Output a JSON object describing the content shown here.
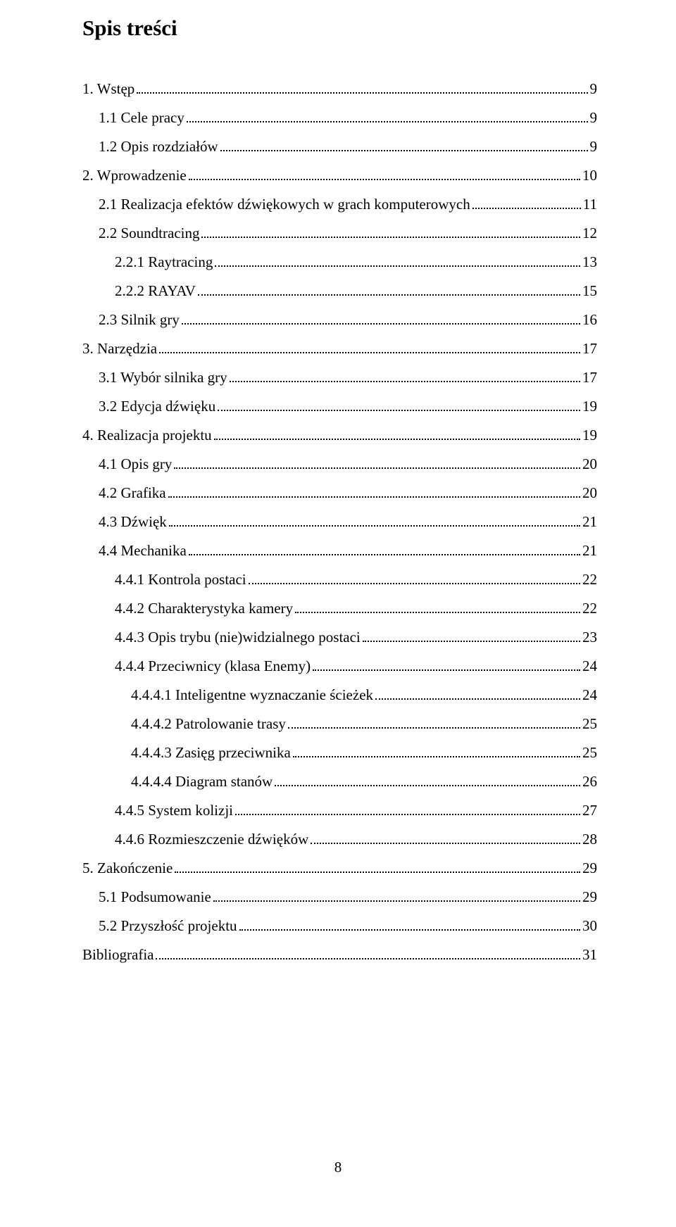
{
  "title": "Spis treści",
  "footer_page_number": "8",
  "toc": [
    {
      "text": "1. Wstęp",
      "page": "9",
      "indent": 0
    },
    {
      "text": "1.1 Cele pracy",
      "page": "9",
      "indent": 1
    },
    {
      "text": "1.2 Opis rozdziałów",
      "page": "9",
      "indent": 1
    },
    {
      "text": "2. Wprowadzenie",
      "page": "10",
      "indent": 0
    },
    {
      "text": "2.1 Realizacja efektów dźwiękowych w grach komputerowych",
      "page": "11",
      "indent": 1
    },
    {
      "text": "2.2 Soundtracing",
      "page": "12",
      "indent": 1
    },
    {
      "text": "2.2.1 Raytracing",
      "page": "13",
      "indent": 2
    },
    {
      "text": "2.2.2 RAYAV",
      "page": "15",
      "indent": 2
    },
    {
      "text": "2.3 Silnik gry",
      "page": "16",
      "indent": 1
    },
    {
      "text": "3. Narzędzia",
      "page": "17",
      "indent": 0
    },
    {
      "text": "3.1 Wybór silnika gry",
      "page": "17",
      "indent": 1
    },
    {
      "text": "3.2 Edycja dźwięku",
      "page": "19",
      "indent": 1
    },
    {
      "text": "4. Realizacja projektu",
      "page": "19",
      "indent": 0
    },
    {
      "text": "4.1 Opis gry",
      "page": "20",
      "indent": 1
    },
    {
      "text": "4.2 Grafika",
      "page": "20",
      "indent": 1
    },
    {
      "text": "4.3 Dźwięk",
      "page": "21",
      "indent": 1
    },
    {
      "text": "4.4 Mechanika",
      "page": "21",
      "indent": 1
    },
    {
      "text": "4.4.1 Kontrola postaci",
      "page": "22",
      "indent": 2
    },
    {
      "text": "4.4.2 Charakterystyka kamery",
      "page": "22",
      "indent": 2
    },
    {
      "text": "4.4.3 Opis trybu (nie)widzialnego postaci",
      "page": "23",
      "indent": 2
    },
    {
      "text": "4.4.4 Przeciwnicy (klasa Enemy)",
      "page": "24",
      "indent": 2
    },
    {
      "text": "4.4.4.1 Inteligentne wyznaczanie ścieżek",
      "page": "24",
      "indent": 3
    },
    {
      "text": "4.4.4.2 Patrolowanie trasy",
      "page": "25",
      "indent": 3
    },
    {
      "text": "4.4.4.3 Zasięg przeciwnika",
      "page": "25",
      "indent": 3
    },
    {
      "text": "4.4.4.4 Diagram stanów",
      "page": "26",
      "indent": 3
    },
    {
      "text": "4.4.5 System kolizji",
      "page": "27",
      "indent": 2
    },
    {
      "text": "4.4.6 Rozmieszczenie dźwięków",
      "page": "28",
      "indent": 2
    },
    {
      "text": "5. Zakończenie",
      "page": "29",
      "indent": 0
    },
    {
      "text": "5.1 Podsumowanie",
      "page": "29",
      "indent": 1
    },
    {
      "text": "5.2 Przyszłość projektu",
      "page": "30",
      "indent": 1
    },
    {
      "text": "Bibliografia",
      "page": "31",
      "indent": 0
    }
  ]
}
